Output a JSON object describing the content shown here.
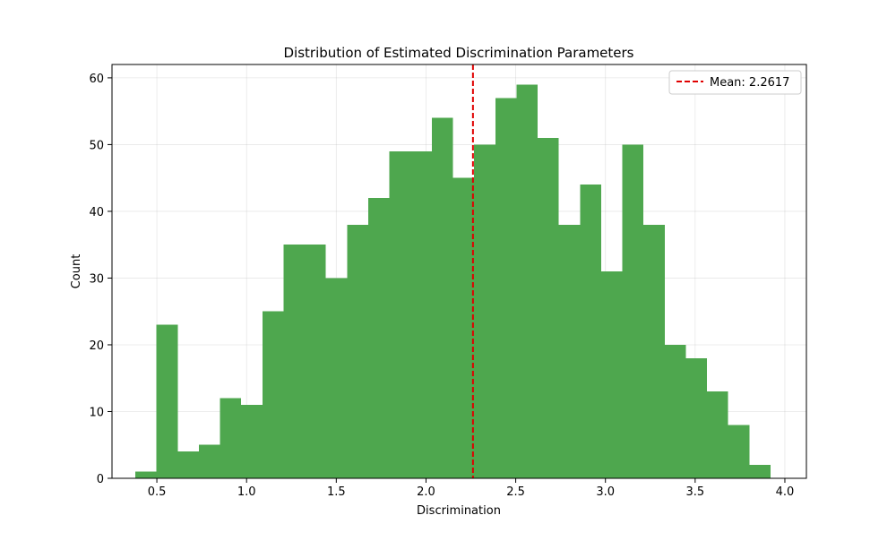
{
  "chart_data": {
    "type": "bar",
    "title": "Distribution of Estimated Discrimination Parameters",
    "xlabel": "Discrimination",
    "ylabel": "Count",
    "xlim": [
      0.25,
      4.12
    ],
    "ylim": [
      0,
      62
    ],
    "xticks": [
      0.5,
      1.0,
      1.5,
      2.0,
      2.5,
      3.0,
      3.5,
      4.0
    ],
    "xtick_labels": [
      "0.5",
      "1.0",
      "1.5",
      "2.0",
      "2.5",
      "3.0",
      "3.5",
      "4.0"
    ],
    "yticks": [
      0,
      10,
      20,
      30,
      40,
      50,
      60
    ],
    "ytick_labels": [
      "0",
      "10",
      "20",
      "30",
      "40",
      "50",
      "60"
    ],
    "grid": true,
    "bar_color": "#4ea74e",
    "bins_start": 0.38,
    "bins_end": 3.92,
    "values": [
      1,
      23,
      4,
      5,
      12,
      11,
      25,
      35,
      35,
      30,
      38,
      42,
      49,
      49,
      54,
      45,
      50,
      57,
      59,
      51,
      38,
      44,
      31,
      50,
      38,
      20,
      18,
      13,
      8,
      2
    ],
    "mean_line": {
      "value": 2.2617,
      "label": "Mean: 2.2617",
      "color": "#e00000",
      "style": "dashed"
    },
    "legend": {
      "placement": "top-right",
      "entries": [
        "Mean: 2.2617"
      ]
    }
  }
}
